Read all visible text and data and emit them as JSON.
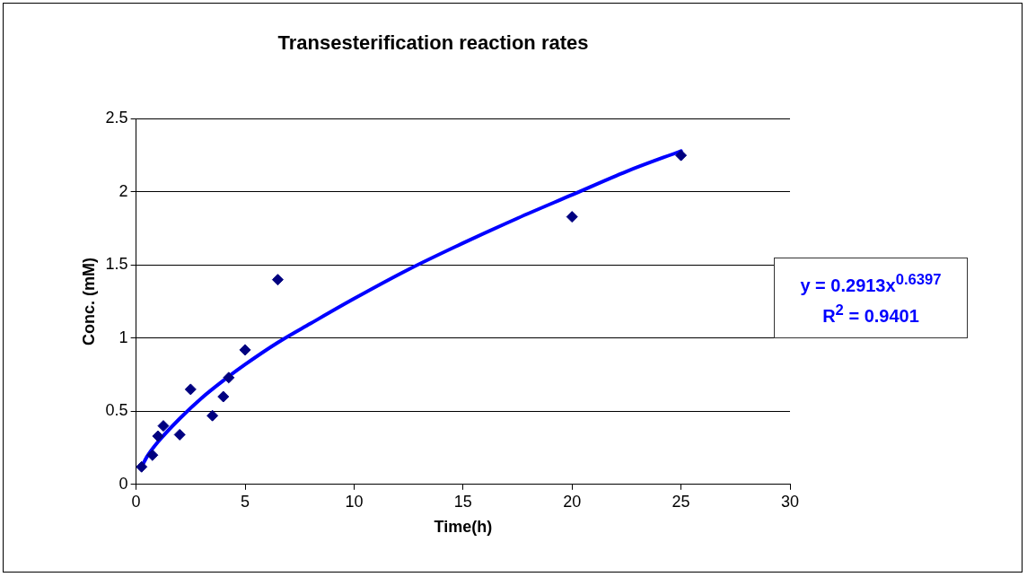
{
  "chart_data": {
    "type": "scatter",
    "title": "Transesterification reaction rates",
    "xlabel": "Time(h)",
    "ylabel": "Conc. (mM)",
    "xlim": [
      0,
      30
    ],
    "xticks": [
      0,
      5,
      10,
      15,
      20,
      25,
      30
    ],
    "ylim": [
      0,
      2.5
    ],
    "yticks": [
      0,
      0.5,
      1,
      1.5,
      2,
      2.5
    ],
    "grid": "y",
    "legend": false,
    "series": [
      {
        "type": "scatter",
        "marker": "diamond",
        "color": "#000080",
        "x": [
          0.25,
          0.75,
          1,
          1.25,
          2,
          2.5,
          3.5,
          4,
          4.25,
          5,
          6.5,
          20,
          25
        ],
        "values": [
          0.12,
          0.2,
          0.33,
          0.4,
          0.34,
          0.65,
          0.47,
          0.6,
          0.73,
          0.92,
          1.4,
          1.83,
          2.25
        ]
      },
      {
        "type": "line",
        "marker": "none",
        "color": "#0000ff",
        "line_style": "solid",
        "x": [
          0.25,
          0.5,
          1,
          2,
          3,
          4,
          5,
          6.5,
          8,
          10,
          12.5,
          15,
          17.5,
          20,
          22.5,
          25
        ],
        "values": [
          0.12,
          0.19,
          0.29,
          0.45,
          0.59,
          0.71,
          0.82,
          0.97,
          1.1,
          1.27,
          1.47,
          1.65,
          1.82,
          1.98,
          2.14,
          2.28
        ]
      }
    ],
    "annotations": [
      "y = 0.2913x$^{0.6397}$\nR$^{2}$ = 0.9401"
    ]
  }
}
